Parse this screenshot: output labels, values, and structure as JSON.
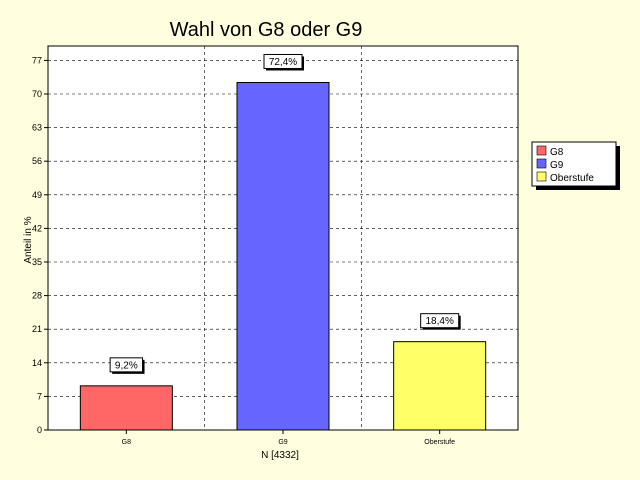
{
  "chart_data": {
    "type": "bar",
    "title": "Wahl von G8 oder G9",
    "xlabel": "N [4332]",
    "ylabel": "Anteil in %",
    "categories": [
      "G8",
      "G9",
      "Oberstufe"
    ],
    "values": [
      9.2,
      72.4,
      18.4
    ],
    "data_labels": [
      "9,2%",
      "72,4%",
      "18,4%"
    ],
    "colors": [
      "#ff6666",
      "#6666ff",
      "#ffff66"
    ],
    "ylim": [
      0,
      80
    ],
    "yticks": [
      0,
      7,
      14,
      21,
      28,
      35,
      42,
      49,
      56,
      63,
      70,
      77
    ],
    "grid": true,
    "legend": {
      "placement": "right",
      "entries": [
        "G8",
        "G9",
        "Oberstufe"
      ]
    }
  }
}
